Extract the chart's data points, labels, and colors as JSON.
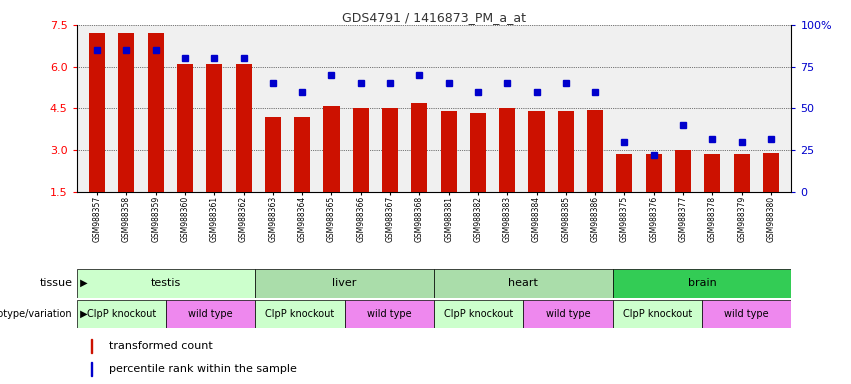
{
  "title": "GDS4791 / 1416873_PM_a_at",
  "samples": [
    "GSM988357",
    "GSM988358",
    "GSM988359",
    "GSM988360",
    "GSM988361",
    "GSM988362",
    "GSM988363",
    "GSM988364",
    "GSM988365",
    "GSM988366",
    "GSM988367",
    "GSM988368",
    "GSM988381",
    "GSM988382",
    "GSM988383",
    "GSM988384",
    "GSM988385",
    "GSM988386",
    "GSM988375",
    "GSM988376",
    "GSM988377",
    "GSM988378",
    "GSM988379",
    "GSM988380"
  ],
  "bar_values": [
    7.2,
    7.2,
    7.2,
    6.1,
    6.1,
    6.1,
    4.2,
    4.2,
    4.6,
    4.5,
    4.5,
    4.7,
    4.4,
    4.35,
    4.5,
    4.4,
    4.4,
    4.45,
    2.85,
    2.85,
    3.0,
    2.85,
    2.85,
    2.9
  ],
  "dot_percentile": [
    85,
    85,
    85,
    80,
    80,
    80,
    65,
    60,
    70,
    65,
    65,
    70,
    65,
    60,
    65,
    60,
    65,
    60,
    30,
    22,
    40,
    32,
    30,
    32
  ],
  "ylim_left": [
    1.5,
    7.5
  ],
  "ylim_right": [
    0,
    100
  ],
  "yticks_left": [
    1.5,
    3.0,
    4.5,
    6.0,
    7.5
  ],
  "yticks_right": [
    0,
    25,
    50,
    75,
    100
  ],
  "bar_color": "#cc1100",
  "dot_color": "#0000cc",
  "tissue_groups": [
    {
      "label": "testis",
      "start": 0,
      "end": 6,
      "color": "#ccffcc"
    },
    {
      "label": "liver",
      "start": 6,
      "end": 12,
      "color": "#aaddaa"
    },
    {
      "label": "heart",
      "start": 12,
      "end": 18,
      "color": "#aaddaa"
    },
    {
      "label": "brain",
      "start": 18,
      "end": 24,
      "color": "#33cc55"
    }
  ],
  "geno_groups": [
    {
      "label": "ClpP knockout",
      "start": 0,
      "end": 3,
      "color": "#ccffcc"
    },
    {
      "label": "wild type",
      "start": 3,
      "end": 6,
      "color": "#ee88ee"
    },
    {
      "label": "ClpP knockout",
      "start": 6,
      "end": 9,
      "color": "#ccffcc"
    },
    {
      "label": "wild type",
      "start": 9,
      "end": 12,
      "color": "#ee88ee"
    },
    {
      "label": "ClpP knockout",
      "start": 12,
      "end": 15,
      "color": "#ccffcc"
    },
    {
      "label": "wild type",
      "start": 15,
      "end": 18,
      "color": "#ee88ee"
    },
    {
      "label": "ClpP knockout",
      "start": 18,
      "end": 21,
      "color": "#ccffcc"
    },
    {
      "label": "wild type",
      "start": 21,
      "end": 24,
      "color": "#ee88ee"
    }
  ],
  "legend_items": [
    {
      "label": "transformed count",
      "color": "#cc1100"
    },
    {
      "label": "percentile rank within the sample",
      "color": "#0000cc"
    }
  ],
  "label_tissue": "tissue",
  "label_geno": "genotype/variation",
  "title_color": "#333333",
  "right_axis_color": "#0000cc",
  "bg_color": "#f0f0f0"
}
